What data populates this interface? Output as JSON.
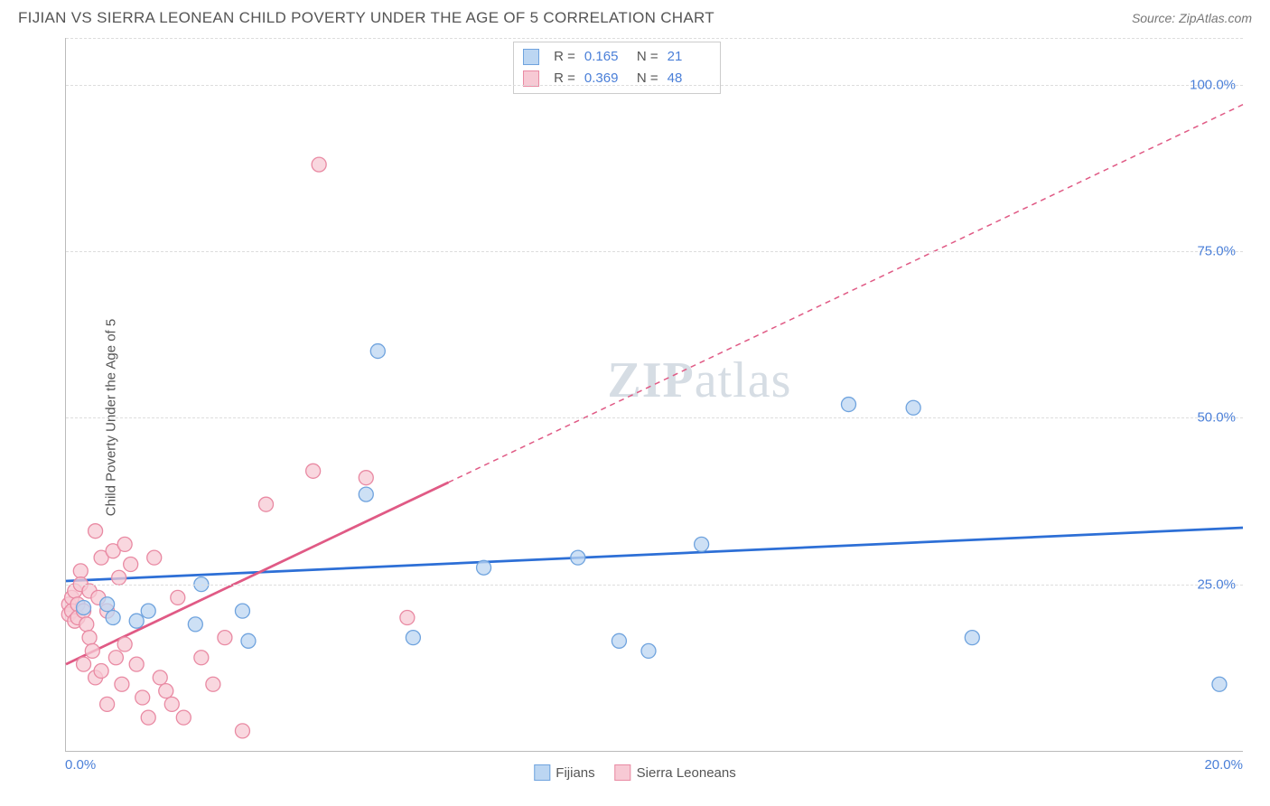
{
  "header": {
    "title": "FIJIAN VS SIERRA LEONEAN CHILD POVERTY UNDER THE AGE OF 5 CORRELATION CHART",
    "source_prefix": "Source: ",
    "source_name": "ZipAtlas.com"
  },
  "yaxis": {
    "label": "Child Poverty Under the Age of 5"
  },
  "watermark": {
    "bold": "ZIP",
    "rest": "atlas"
  },
  "chart": {
    "type": "scatter",
    "xlim": [
      0,
      20
    ],
    "ylim": [
      0,
      107
    ],
    "xticks": [
      {
        "value": 0,
        "label": "0.0%"
      },
      {
        "value": 20,
        "label": "20.0%"
      }
    ],
    "yticks": [
      {
        "value": 25,
        "label": "25.0%"
      },
      {
        "value": 50,
        "label": "50.0%"
      },
      {
        "value": 75,
        "label": "75.0%"
      },
      {
        "value": 100,
        "label": "100.0%"
      }
    ],
    "grid_color": "#dddddd",
    "background_color": "#ffffff",
    "marker_radius": 8,
    "marker_stroke_width": 1.3,
    "trend_line_width": 2.8
  },
  "series": [
    {
      "id": "fijians",
      "label": "Fijians",
      "fill": "#bcd6f2",
      "stroke": "#6fa3de",
      "line_color": "#2d6fd6",
      "R": "0.165",
      "N": "21",
      "trend": {
        "x1": 0,
        "y1": 25.5,
        "x2": 20,
        "y2": 33.5,
        "dashed_from": null
      },
      "points": [
        [
          0.3,
          21.5
        ],
        [
          0.7,
          22
        ],
        [
          0.8,
          20
        ],
        [
          1.2,
          19.5
        ],
        [
          1.4,
          21
        ],
        [
          2.2,
          19
        ],
        [
          2.3,
          25
        ],
        [
          3.0,
          21
        ],
        [
          3.1,
          16.5
        ],
        [
          5.1,
          38.5
        ],
        [
          5.3,
          60
        ],
        [
          5.9,
          17
        ],
        [
          7.1,
          27.5
        ],
        [
          8.7,
          29
        ],
        [
          9.4,
          16.5
        ],
        [
          9.9,
          15
        ],
        [
          10.8,
          31
        ],
        [
          13.3,
          52
        ],
        [
          14.4,
          51.5
        ],
        [
          15.4,
          17
        ],
        [
          19.6,
          10
        ]
      ]
    },
    {
      "id": "sierra-leoneans",
      "label": "Sierra Leoneans",
      "fill": "#f7c9d4",
      "stroke": "#e98aa3",
      "line_color": "#e05a85",
      "R": "0.369",
      "N": "48",
      "trend": {
        "x1": 0,
        "y1": 13,
        "x2": 20,
        "y2": 97,
        "dashed_from": 6.5
      },
      "points": [
        [
          0.05,
          22
        ],
        [
          0.05,
          20.5
        ],
        [
          0.1,
          23
        ],
        [
          0.1,
          21
        ],
        [
          0.15,
          24
        ],
        [
          0.15,
          19.5
        ],
        [
          0.2,
          22
        ],
        [
          0.2,
          20
        ],
        [
          0.25,
          27
        ],
        [
          0.25,
          25
        ],
        [
          0.3,
          21
        ],
        [
          0.3,
          13
        ],
        [
          0.35,
          19
        ],
        [
          0.4,
          24
        ],
        [
          0.4,
          17
        ],
        [
          0.45,
          15
        ],
        [
          0.5,
          33
        ],
        [
          0.5,
          11
        ],
        [
          0.55,
          23
        ],
        [
          0.6,
          29
        ],
        [
          0.6,
          12
        ],
        [
          0.7,
          21
        ],
        [
          0.7,
          7
        ],
        [
          0.8,
          30
        ],
        [
          0.85,
          14
        ],
        [
          0.9,
          26
        ],
        [
          0.95,
          10
        ],
        [
          1.0,
          31
        ],
        [
          1.0,
          16
        ],
        [
          1.1,
          28
        ],
        [
          1.2,
          13
        ],
        [
          1.3,
          8
        ],
        [
          1.4,
          5
        ],
        [
          1.5,
          29
        ],
        [
          1.6,
          11
        ],
        [
          1.7,
          9
        ],
        [
          1.8,
          7
        ],
        [
          1.9,
          23
        ],
        [
          2.0,
          5
        ],
        [
          2.3,
          14
        ],
        [
          2.5,
          10
        ],
        [
          2.7,
          17
        ],
        [
          3.0,
          3
        ],
        [
          3.4,
          37
        ],
        [
          4.2,
          42
        ],
        [
          4.3,
          88
        ],
        [
          5.1,
          41
        ],
        [
          5.8,
          20
        ]
      ]
    }
  ],
  "legend_bottom": [
    {
      "series": 0
    },
    {
      "series": 1
    }
  ],
  "stats_box": {
    "rows": [
      {
        "series": 0
      },
      {
        "series": 1
      }
    ],
    "r_label": "R  =",
    "n_label": "N  ="
  }
}
